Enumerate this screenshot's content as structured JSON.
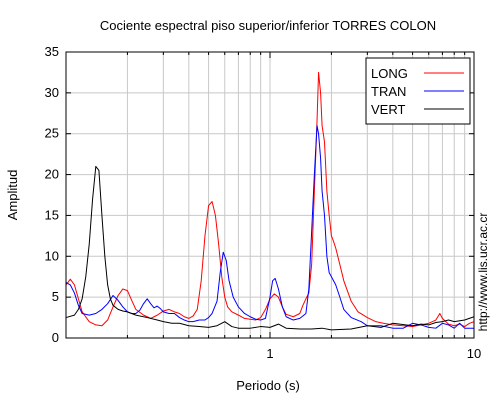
{
  "chart_data": {
    "type": "line",
    "title": "Cociente espectral piso superior/inferior  TORRES COLON",
    "xlabel": "Periodo (s)",
    "ylabel": "Amplitud",
    "side_note": "http://www.lis.ucr.ac.cr",
    "x_scale": "log",
    "xlim": [
      0.1,
      10
    ],
    "ylim": [
      0,
      35
    ],
    "y_ticks": [
      0,
      5,
      10,
      15,
      20,
      25,
      30,
      35
    ],
    "x_tick_labels": [
      {
        "value": 1,
        "label": "1"
      },
      {
        "value": 10,
        "label": "10"
      }
    ],
    "grid": true,
    "legend_position": "top-right",
    "series": [
      {
        "name": "LONG",
        "color": "#ff0000",
        "points": [
          [
            0.1,
            6.5
          ],
          [
            0.105,
            7.2
          ],
          [
            0.11,
            6.5
          ],
          [
            0.115,
            4.8
          ],
          [
            0.12,
            3.2
          ],
          [
            0.13,
            2.0
          ],
          [
            0.14,
            1.6
          ],
          [
            0.15,
            1.5
          ],
          [
            0.16,
            2.2
          ],
          [
            0.17,
            3.8
          ],
          [
            0.18,
            5.2
          ],
          [
            0.19,
            6.0
          ],
          [
            0.2,
            5.8
          ],
          [
            0.21,
            4.6
          ],
          [
            0.22,
            3.5
          ],
          [
            0.24,
            2.8
          ],
          [
            0.26,
            2.4
          ],
          [
            0.28,
            2.8
          ],
          [
            0.3,
            3.3
          ],
          [
            0.32,
            3.5
          ],
          [
            0.34,
            3.2
          ],
          [
            0.36,
            3.0
          ],
          [
            0.38,
            2.6
          ],
          [
            0.4,
            2.4
          ],
          [
            0.42,
            2.7
          ],
          [
            0.44,
            3.5
          ],
          [
            0.46,
            7.0
          ],
          [
            0.48,
            12.5
          ],
          [
            0.5,
            16.2
          ],
          [
            0.52,
            16.7
          ],
          [
            0.54,
            15.0
          ],
          [
            0.56,
            11.5
          ],
          [
            0.58,
            7.5
          ],
          [
            0.6,
            5.0
          ],
          [
            0.62,
            3.8
          ],
          [
            0.65,
            3.2
          ],
          [
            0.7,
            2.8
          ],
          [
            0.75,
            2.4
          ],
          [
            0.8,
            2.3
          ],
          [
            0.85,
            2.2
          ],
          [
            0.9,
            2.5
          ],
          [
            0.95,
            3.5
          ],
          [
            1.0,
            4.8
          ],
          [
            1.05,
            5.4
          ],
          [
            1.1,
            5.0
          ],
          [
            1.15,
            3.8
          ],
          [
            1.2,
            2.9
          ],
          [
            1.3,
            2.6
          ],
          [
            1.4,
            3.0
          ],
          [
            1.45,
            4.0
          ],
          [
            1.5,
            4.8
          ],
          [
            1.55,
            5.5
          ],
          [
            1.6,
            9.0
          ],
          [
            1.65,
            18.0
          ],
          [
            1.7,
            26.5
          ],
          [
            1.73,
            32.5
          ],
          [
            1.77,
            30.0
          ],
          [
            1.8,
            26.0
          ],
          [
            1.85,
            24.0
          ],
          [
            1.9,
            18.0
          ],
          [
            1.95,
            15.0
          ],
          [
            2.0,
            12.5
          ],
          [
            2.05,
            11.8
          ],
          [
            2.1,
            11.0
          ],
          [
            2.2,
            9.0
          ],
          [
            2.3,
            7.0
          ],
          [
            2.5,
            4.5
          ],
          [
            2.7,
            3.2
          ],
          [
            3.0,
            2.5
          ],
          [
            3.3,
            2.0
          ],
          [
            3.6,
            1.8
          ],
          [
            4.0,
            1.6
          ],
          [
            4.5,
            1.5
          ],
          [
            5.0,
            1.4
          ],
          [
            5.5,
            1.6
          ],
          [
            6.0,
            1.8
          ],
          [
            6.5,
            2.2
          ],
          [
            6.8,
            3.0
          ],
          [
            7.0,
            2.4
          ],
          [
            7.5,
            1.7
          ],
          [
            8.0,
            1.5
          ],
          [
            8.5,
            1.7
          ],
          [
            9.0,
            1.4
          ],
          [
            9.5,
            1.8
          ],
          [
            10.0,
            2.0
          ]
        ]
      },
      {
        "name": "TRAN",
        "color": "#0000ff",
        "points": [
          [
            0.1,
            6.8
          ],
          [
            0.105,
            6.5
          ],
          [
            0.11,
            5.5
          ],
          [
            0.115,
            4.0
          ],
          [
            0.12,
            3.0
          ],
          [
            0.13,
            2.8
          ],
          [
            0.14,
            3.0
          ],
          [
            0.15,
            3.5
          ],
          [
            0.16,
            4.2
          ],
          [
            0.17,
            5.2
          ],
          [
            0.18,
            4.6
          ],
          [
            0.19,
            3.8
          ],
          [
            0.2,
            3.2
          ],
          [
            0.21,
            3.0
          ],
          [
            0.22,
            3.0
          ],
          [
            0.23,
            3.4
          ],
          [
            0.24,
            4.2
          ],
          [
            0.25,
            4.8
          ],
          [
            0.26,
            4.2
          ],
          [
            0.27,
            3.7
          ],
          [
            0.28,
            3.9
          ],
          [
            0.29,
            3.6
          ],
          [
            0.3,
            3.2
          ],
          [
            0.32,
            3.0
          ],
          [
            0.34,
            3.0
          ],
          [
            0.36,
            2.5
          ],
          [
            0.38,
            2.2
          ],
          [
            0.4,
            2.0
          ],
          [
            0.42,
            2.0
          ],
          [
            0.45,
            2.2
          ],
          [
            0.48,
            2.2
          ],
          [
            0.5,
            2.5
          ],
          [
            0.52,
            3.0
          ],
          [
            0.55,
            4.5
          ],
          [
            0.57,
            8.0
          ],
          [
            0.59,
            10.5
          ],
          [
            0.61,
            9.5
          ],
          [
            0.63,
            7.0
          ],
          [
            0.66,
            5.0
          ],
          [
            0.7,
            3.8
          ],
          [
            0.75,
            3.0
          ],
          [
            0.8,
            2.6
          ],
          [
            0.85,
            2.3
          ],
          [
            0.9,
            2.2
          ],
          [
            0.95,
            2.4
          ],
          [
            1.0,
            5.0
          ],
          [
            1.03,
            7.0
          ],
          [
            1.06,
            7.3
          ],
          [
            1.1,
            6.0
          ],
          [
            1.15,
            3.8
          ],
          [
            1.2,
            2.6
          ],
          [
            1.3,
            2.2
          ],
          [
            1.4,
            2.4
          ],
          [
            1.5,
            3.0
          ],
          [
            1.55,
            6.0
          ],
          [
            1.6,
            13.0
          ],
          [
            1.65,
            20.0
          ],
          [
            1.7,
            26.0
          ],
          [
            1.73,
            25.0
          ],
          [
            1.77,
            22.0
          ],
          [
            1.8,
            18.0
          ],
          [
            1.85,
            15.0
          ],
          [
            1.9,
            10.0
          ],
          [
            1.95,
            8.0
          ],
          [
            2.0,
            7.5
          ],
          [
            2.1,
            6.5
          ],
          [
            2.2,
            5.0
          ],
          [
            2.3,
            3.5
          ],
          [
            2.5,
            2.5
          ],
          [
            2.8,
            2.0
          ],
          [
            3.0,
            1.5
          ],
          [
            3.5,
            1.5
          ],
          [
            4.0,
            1.2
          ],
          [
            4.5,
            1.2
          ],
          [
            5.0,
            1.8
          ],
          [
            5.5,
            1.6
          ],
          [
            6.0,
            1.3
          ],
          [
            6.5,
            1.2
          ],
          [
            7.0,
            1.8
          ],
          [
            7.5,
            1.6
          ],
          [
            8.0,
            1.2
          ],
          [
            8.5,
            1.8
          ],
          [
            9.0,
            1.2
          ],
          [
            10.0,
            1.2
          ]
        ]
      },
      {
        "name": "VERT",
        "color": "#000000",
        "points": [
          [
            0.1,
            2.5
          ],
          [
            0.11,
            2.8
          ],
          [
            0.115,
            3.5
          ],
          [
            0.12,
            4.8
          ],
          [
            0.125,
            7.5
          ],
          [
            0.13,
            11.5
          ],
          [
            0.135,
            17.0
          ],
          [
            0.14,
            21.0
          ],
          [
            0.145,
            20.5
          ],
          [
            0.15,
            15.0
          ],
          [
            0.155,
            10.0
          ],
          [
            0.16,
            6.5
          ],
          [
            0.165,
            4.8
          ],
          [
            0.17,
            4.0
          ],
          [
            0.18,
            3.5
          ],
          [
            0.19,
            3.3
          ],
          [
            0.2,
            3.2
          ],
          [
            0.22,
            2.8
          ],
          [
            0.25,
            2.5
          ],
          [
            0.28,
            2.2
          ],
          [
            0.3,
            2.0
          ],
          [
            0.33,
            1.8
          ],
          [
            0.36,
            1.8
          ],
          [
            0.4,
            1.5
          ],
          [
            0.45,
            1.4
          ],
          [
            0.5,
            1.3
          ],
          [
            0.55,
            1.5
          ],
          [
            0.6,
            2.0
          ],
          [
            0.65,
            1.4
          ],
          [
            0.7,
            1.2
          ],
          [
            0.8,
            1.2
          ],
          [
            0.9,
            1.4
          ],
          [
            1.0,
            1.3
          ],
          [
            1.1,
            1.7
          ],
          [
            1.2,
            1.2
          ],
          [
            1.4,
            1.1
          ],
          [
            1.6,
            1.1
          ],
          [
            1.8,
            1.2
          ],
          [
            2.0,
            1.0
          ],
          [
            2.5,
            1.1
          ],
          [
            3.0,
            1.5
          ],
          [
            3.5,
            1.3
          ],
          [
            4.0,
            1.8
          ],
          [
            5.0,
            1.5
          ],
          [
            5.5,
            1.7
          ],
          [
            6.0,
            1.6
          ],
          [
            6.5,
            1.9
          ],
          [
            7.0,
            2.0
          ],
          [
            7.5,
            2.2
          ],
          [
            8.0,
            2.0
          ],
          [
            9.0,
            2.2
          ],
          [
            10.0,
            2.6
          ]
        ]
      }
    ]
  }
}
